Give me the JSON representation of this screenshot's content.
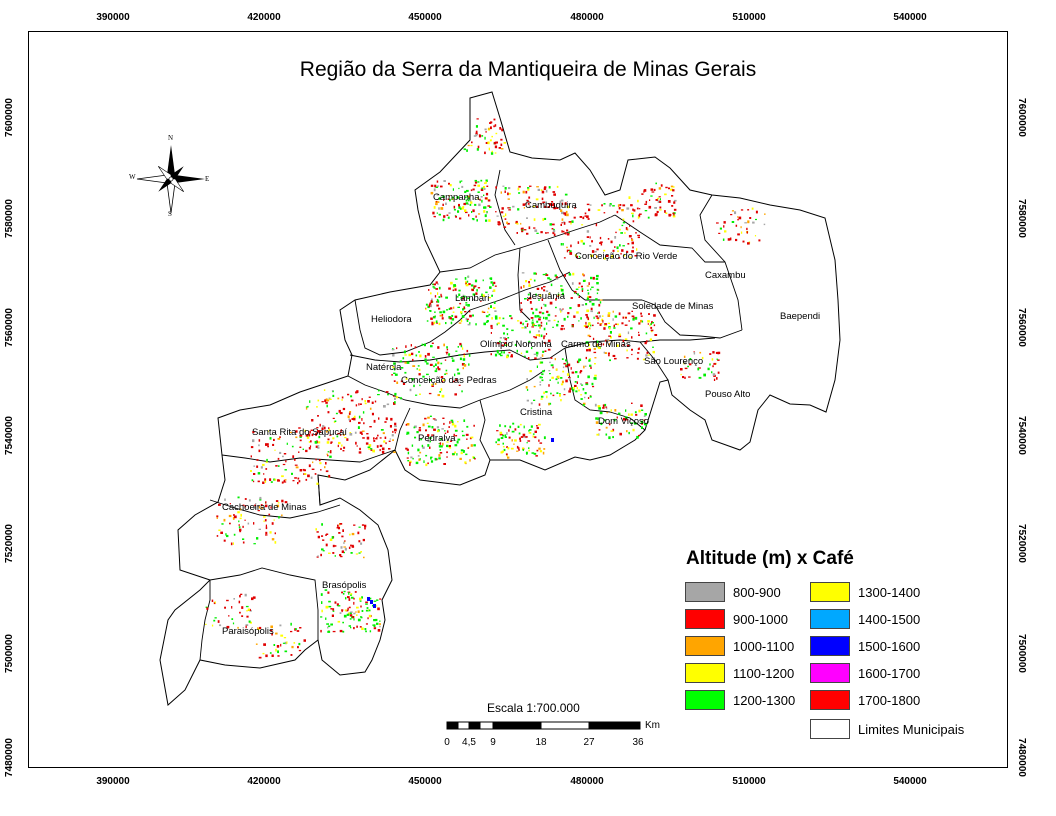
{
  "map": {
    "title": "Região da Serra da Mantiqueira de Minas Gerais",
    "x_ticks": [
      "390000",
      "420000",
      "450000",
      "480000",
      "510000",
      "540000"
    ],
    "y_ticks": [
      "7600000",
      "7580000",
      "7560000",
      "7540000",
      "7520000",
      "7500000",
      "7480000"
    ],
    "municipalities": [
      "Campanha",
      "Cambuquira",
      "Conceição do Rio Verde",
      "Caxambu",
      "Baependi",
      "Lambari",
      "Jesuânia",
      "Soledade de Minas",
      "Heliodora",
      "Olímpio Noronha",
      "Carmo de Minas",
      "São Lourenço",
      "Natércia",
      "Conceição das Pedras",
      "Pouso Alto",
      "Cristina",
      "Dom Viçoso",
      "Santa Rita do Sapucaí",
      "Pedralva",
      "Cachoeira de Minas",
      "Brasópolis",
      "Paraisópolis"
    ]
  },
  "compass": {
    "n": "N",
    "s": "S",
    "e": "E",
    "w": "W",
    "icon": "north-arrow-icon"
  },
  "legend": {
    "title": "Altitude (m) x Café",
    "classes": [
      {
        "label": "800-900",
        "color": "#a6a6a6"
      },
      {
        "label": "900-1000",
        "color": "#ff0000"
      },
      {
        "label": "1000-1100",
        "color": "#ffa500"
      },
      {
        "label": "1100-1200",
        "color": "#ffff00"
      },
      {
        "label": "1200-1300",
        "color": "#00ff00"
      },
      {
        "label": "1300-1400",
        "color": "#ffff00"
      },
      {
        "label": "1400-1500",
        "color": "#00a8ff"
      },
      {
        "label": "1500-1600",
        "color": "#0000ff"
      },
      {
        "label": "1600-1700",
        "color": "#ff00ff"
      },
      {
        "label": "1700-1800",
        "color": "#ff0000"
      }
    ],
    "boundary_label": "Limites Municipais",
    "boundary_color": "#ffffff"
  },
  "scale": {
    "title": "Escala 1:700.000",
    "labels": [
      "0",
      "4,5",
      "9",
      "18",
      "27",
      "36"
    ],
    "unit": "Km"
  }
}
